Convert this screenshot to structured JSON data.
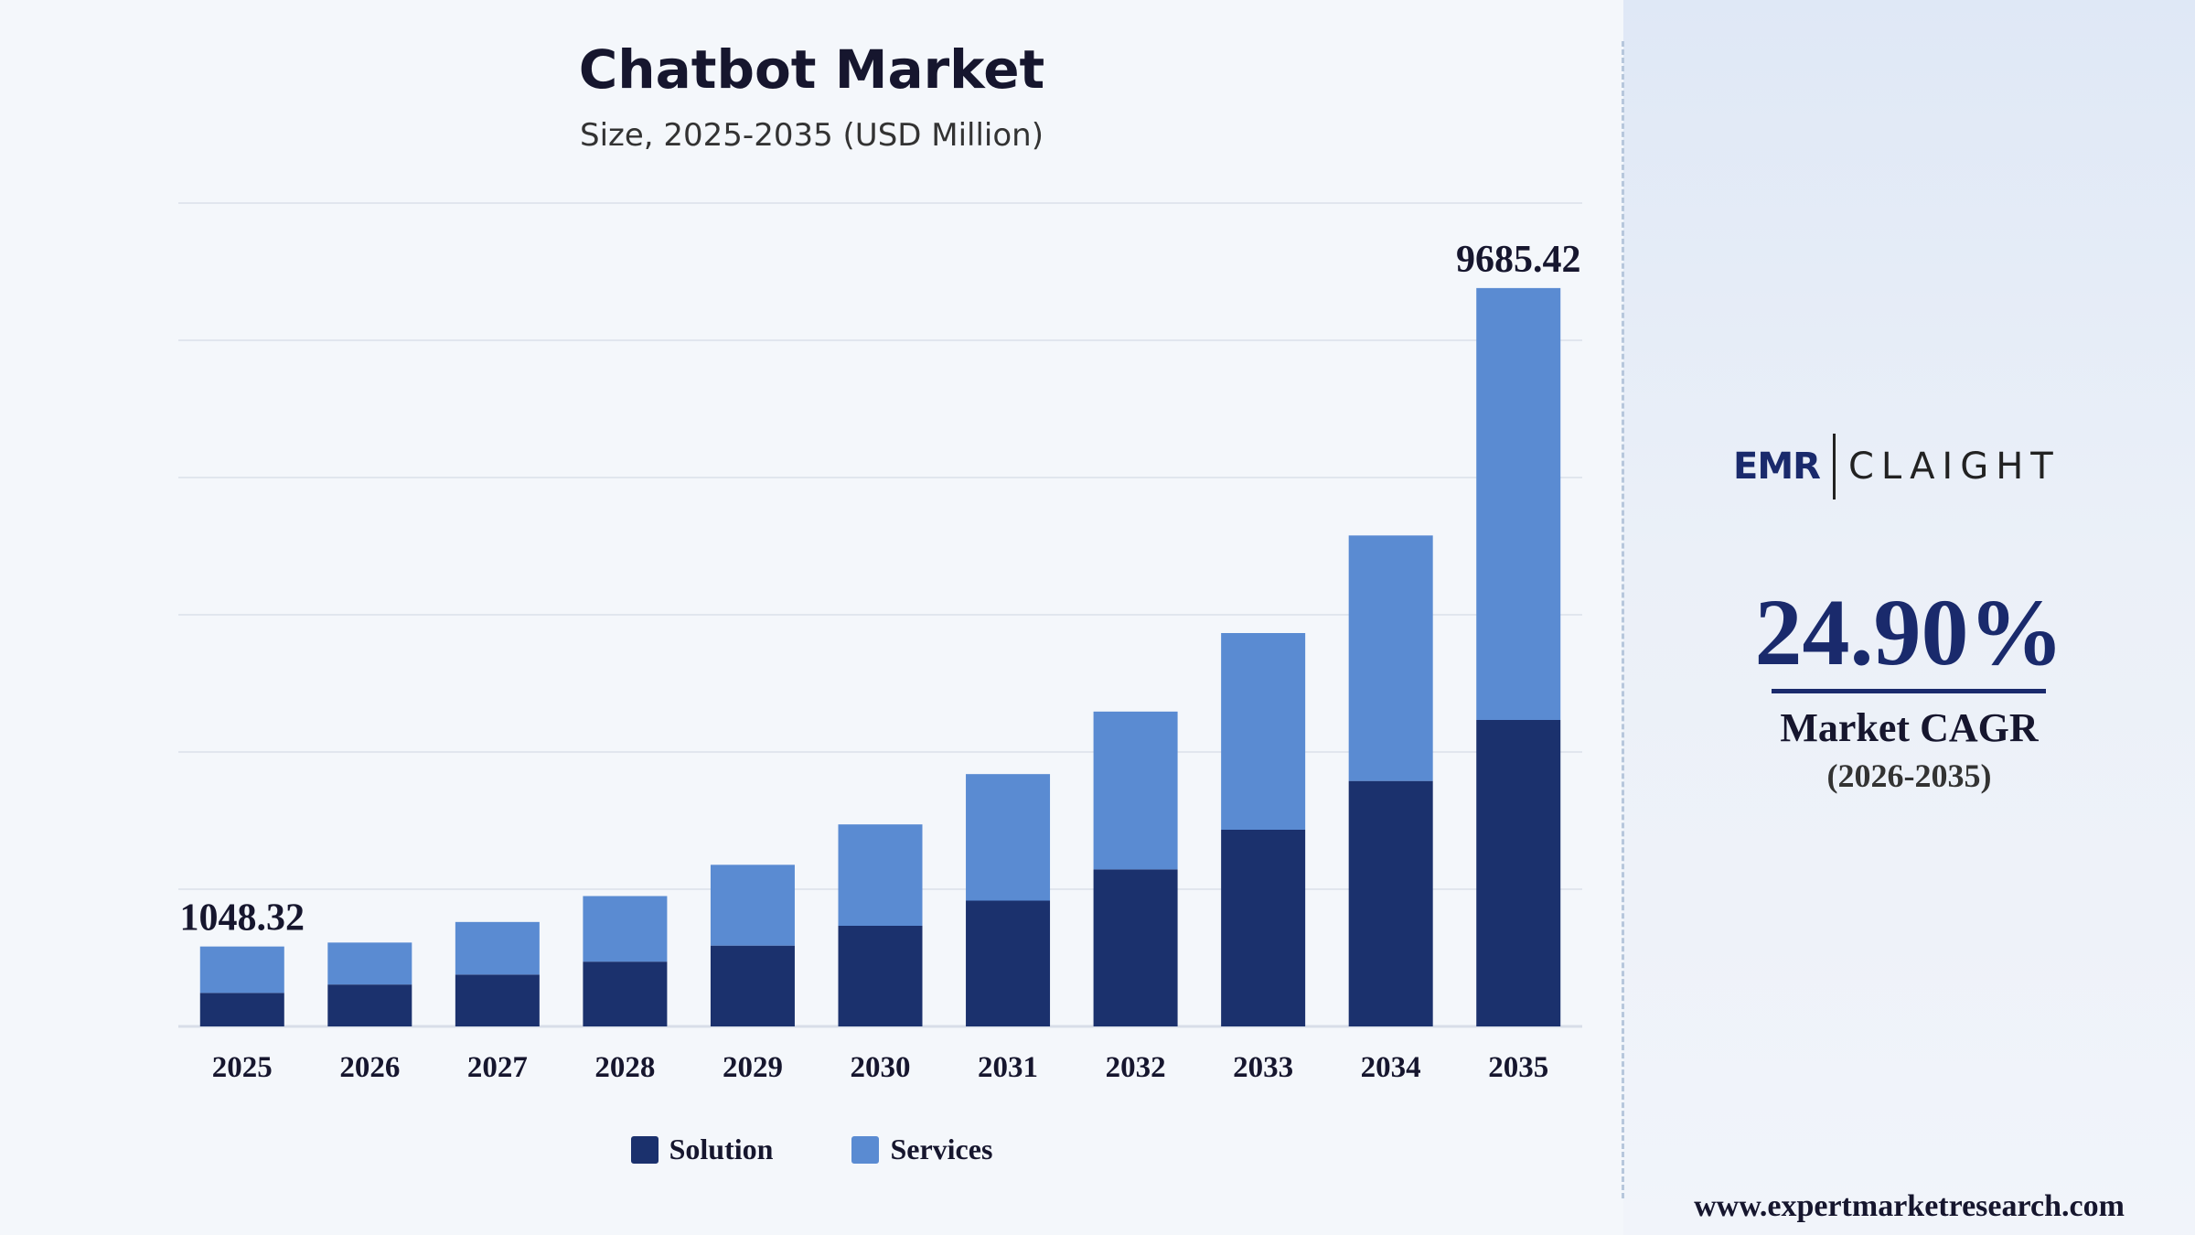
{
  "chart_data": {
    "type": "bar",
    "stacked": true,
    "title": "Chatbot Market",
    "subtitle": "Size, 2025-2035 (USD Million)",
    "categories": [
      "2025",
      "2026",
      "2027",
      "2028",
      "2029",
      "2030",
      "2031",
      "2032",
      "2033",
      "2034",
      "2035"
    ],
    "series": [
      {
        "name": "Solution",
        "color": "#1b316d",
        "values": [
          440,
          550,
          680,
          850,
          1060,
          1320,
          1650,
          2060,
          2580,
          3220,
          4020
        ]
      },
      {
        "name": "Services",
        "color": "#5a8bd2",
        "values": [
          608.32,
          550,
          690,
          860,
          1060,
          1330,
          1660,
          2070,
          2580,
          3220,
          5665.42
        ]
      }
    ],
    "data_labels": [
      {
        "category": "2025",
        "text": "1048.32"
      },
      {
        "category": "2035",
        "text": "9685.42"
      }
    ],
    "ylim": [
      0,
      10800
    ],
    "grid": true,
    "legend_position": "bottom-center"
  },
  "brand": {
    "logo_left": "EMR",
    "logo_right": "CLAIGHT",
    "website": "www.expertmarketresearch.com"
  },
  "cagr": {
    "value": "24.90%",
    "label": "Market CAGR",
    "period": "(2026-2035)"
  },
  "colors": {
    "navy": "#1b316d",
    "light_blue": "#5a8bd2",
    "text_dark": "#16162e"
  }
}
